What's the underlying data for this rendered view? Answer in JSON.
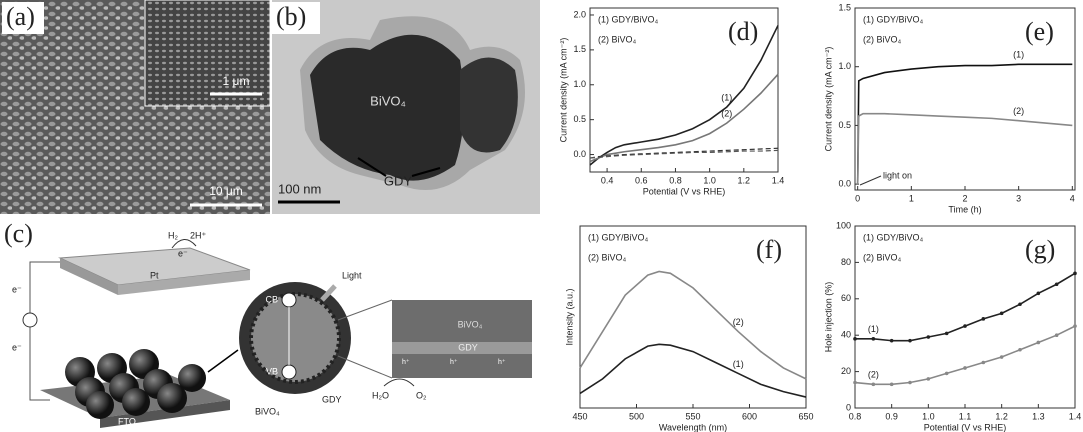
{
  "figure": {
    "a": {
      "label": "(a)",
      "inset_scale": "1 μm",
      "scale": "10 μm"
    },
    "b": {
      "label": "(b)",
      "material": "BiVO₄",
      "coating": "GDY",
      "scale": "100 nm"
    },
    "c": {
      "label": "(c)",
      "h2": "H₂",
      "h_plus": "2H⁺",
      "electron": "e⁻",
      "pt": "Pt",
      "fto": "FTO",
      "light": "Light",
      "cb": "CB",
      "vb": "VB",
      "bivo4": "BiVO₄",
      "gdy": "GDY",
      "hole": "h⁺",
      "h2o": "H₂O",
      "o2": "O₂"
    }
  },
  "chart_data": [
    {
      "type": "line",
      "panel_label": "(d)",
      "x_label": "Potential (V vs RHE)",
      "y_label": "Current density (mA cm⁻²)",
      "x": [
        0.3,
        0.35,
        0.4,
        0.45,
        0.5,
        0.6,
        0.7,
        0.8,
        0.9,
        1.0,
        1.1,
        1.2,
        1.3,
        1.4
      ],
      "series": [
        {
          "name": "(1) GDY/BiVO₄",
          "label": "(1)",
          "color": "#222222",
          "values": [
            -0.15,
            -0.05,
            0.03,
            0.1,
            0.14,
            0.18,
            0.22,
            0.28,
            0.37,
            0.5,
            0.68,
            0.95,
            1.35,
            1.85
          ]
        },
        {
          "name": "(2) BiVO₄",
          "label": "(2)",
          "color": "#777777",
          "values": [
            -0.1,
            -0.05,
            0.0,
            0.02,
            0.04,
            0.07,
            0.1,
            0.14,
            0.2,
            0.3,
            0.45,
            0.65,
            0.88,
            1.15
          ]
        },
        {
          "color": "#333333",
          "dash": true,
          "values": [
            -0.05,
            -0.03,
            -0.02,
            -0.01,
            0,
            0.01,
            0.02,
            0.03,
            0.04,
            0.05,
            0.06,
            0.07,
            0.08,
            0.09
          ]
        },
        {
          "color": "#555555",
          "dash": true,
          "values": [
            -0.05,
            -0.04,
            -0.03,
            -0.02,
            -0.01,
            0,
            0.01,
            0.02,
            0.03,
            0.03,
            0.04,
            0.05,
            0.05,
            0.06
          ]
        }
      ],
      "xlim": [
        0.3,
        1.4
      ],
      "xticks": [
        0.4,
        0.6,
        0.8,
        {
          "value": 1.0,
          "label": "1.0"
        },
        1.2,
        1.4
      ],
      "ylim": [
        -0.25,
        2.1
      ],
      "yticks": [
        {
          "value": 0,
          "label": "0.0"
        },
        0.5,
        {
          "value": 1.0,
          "label": "1.0"
        },
        1.5,
        {
          "value": 2.0,
          "label": "2.0"
        }
      ]
    },
    {
      "type": "line",
      "panel_label": "(e)",
      "x_label": "Time (h)",
      "y_label": "Current density (mA cm⁻²)",
      "annotation": "light on",
      "x": [
        0,
        0.02,
        0.1,
        0.5,
        1,
        1.5,
        2,
        2.5,
        3,
        3.5,
        4
      ],
      "series": [
        {
          "name": "(1) GDY/BiVO₄",
          "label": "(1)",
          "color": "#111111",
          "values": [
            0,
            0.88,
            0.9,
            0.95,
            0.98,
            1.0,
            1.01,
            1.01,
            1.02,
            1.02,
            1.02
          ]
        },
        {
          "name": "(2) BiVO₄",
          "label": "(2)",
          "color": "#888888",
          "values": [
            0,
            0.58,
            0.6,
            0.6,
            0.59,
            0.58,
            0.57,
            0.56,
            0.54,
            0.52,
            0.5
          ]
        }
      ],
      "xlim": [
        -0.05,
        4.05
      ],
      "xticks": [
        0,
        1,
        2,
        3,
        4
      ],
      "ylim": [
        -0.05,
        1.5
      ],
      "yticks": [
        {
          "value": 0,
          "label": "0.0"
        },
        0.5,
        {
          "value": 1.0,
          "label": "1.0"
        },
        1.5
      ]
    },
    {
      "type": "line",
      "panel_label": "(f)",
      "x_label": "Wavelength (nm)",
      "y_label": "Intensity (a.u.)",
      "x": [
        450,
        470,
        490,
        510,
        520,
        530,
        550,
        570,
        590,
        610,
        630,
        650
      ],
      "series": [
        {
          "name": "(1) GDY/BiVO₄",
          "label": "(1)",
          "color": "#222222",
          "values": [
            0.08,
            0.16,
            0.27,
            0.34,
            0.35,
            0.345,
            0.31,
            0.25,
            0.19,
            0.13,
            0.09,
            0.06
          ]
        },
        {
          "name": "(2) BiVO₄",
          "label": "(2)",
          "color": "#888888",
          "values": [
            0.22,
            0.42,
            0.62,
            0.73,
            0.75,
            0.74,
            0.66,
            0.54,
            0.42,
            0.31,
            0.22,
            0.16
          ]
        }
      ],
      "xlim": [
        450,
        650
      ],
      "xticks": [
        450,
        500,
        550,
        600,
        650
      ],
      "ylim": [
        0,
        1
      ]
    },
    {
      "type": "line",
      "panel_label": "(g)",
      "x_label": "Potential (V vs RHE)",
      "y_label": "Hole injection (%)",
      "markers": true,
      "x": [
        0.8,
        0.85,
        0.9,
        0.95,
        1.0,
        1.05,
        1.1,
        1.15,
        1.2,
        1.25,
        1.3,
        1.35,
        1.4
      ],
      "series": [
        {
          "name": "(1) GDY/BiVO₄",
          "label": "(1)",
          "color": "#222222",
          "values": [
            38,
            38,
            37,
            37,
            39,
            41,
            45,
            49,
            52,
            57,
            63,
            68,
            74
          ]
        },
        {
          "name": "(2) BiVO₄",
          "label": "(2)",
          "color": "#888888",
          "values": [
            14,
            13,
            13,
            14,
            16,
            19,
            22,
            25,
            28,
            32,
            36,
            40,
            45
          ]
        }
      ],
      "xlim": [
        0.8,
        1.4
      ],
      "xticks": [
        0.8,
        0.9,
        {
          "value": 1.0,
          "label": "1.0"
        },
        1.1,
        1.2,
        1.3,
        1.4
      ],
      "ylim": [
        0,
        100
      ],
      "yticks": [
        0,
        20,
        40,
        60,
        80,
        100
      ]
    }
  ]
}
